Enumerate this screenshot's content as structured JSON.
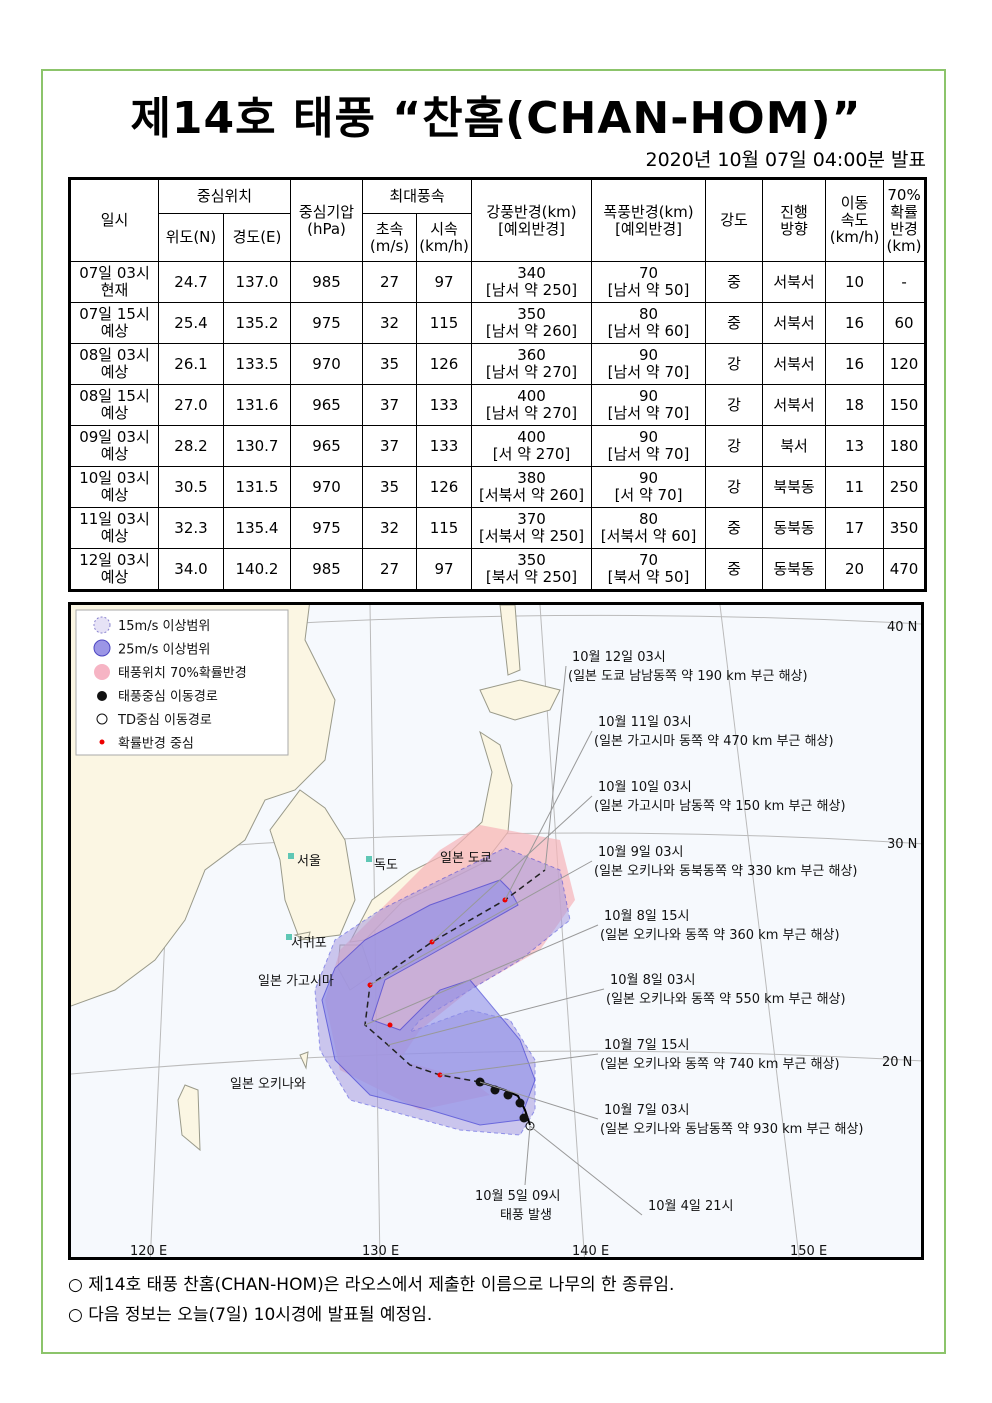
{
  "title": "제14호 태풍 “찬홈(CHAN-HOM)”",
  "issued": "2020년 10월 07일 04:00분 발표",
  "table": {
    "headers": {
      "time": "일시",
      "center": "중심위치",
      "lat": "위도(N)",
      "lon": "경도(E)",
      "pressure": "중심기압\n(hPa)",
      "max_wind": "최대풍속",
      "ms": "초속\n(m/s)",
      "kmh": "시속\n(km/h)",
      "gale": "강풍반경(km)\n[예외반경]",
      "storm": "폭풍반경(km)\n[예외반경]",
      "intensity": "강도",
      "direction": "진행\n방향",
      "speed": "이동\n속도\n(km/h)",
      "prob": "70%\n확률\n반경\n(km)"
    },
    "rows": [
      [
        "07일 03시\n현재",
        "24.7",
        "137.0",
        "985",
        "27",
        "97",
        "340\n[남서 약 250]",
        "70\n[남서 약 50]",
        "중",
        "서북서",
        "10",
        "-"
      ],
      [
        "07일 15시\n예상",
        "25.4",
        "135.2",
        "975",
        "32",
        "115",
        "350\n[남서 약 260]",
        "80\n[남서 약 60]",
        "중",
        "서북서",
        "16",
        "60"
      ],
      [
        "08일 03시\n예상",
        "26.1",
        "133.5",
        "970",
        "35",
        "126",
        "360\n[남서 약 270]",
        "90\n[남서 약 70]",
        "강",
        "서북서",
        "16",
        "120"
      ],
      [
        "08일 15시\n예상",
        "27.0",
        "131.6",
        "965",
        "37",
        "133",
        "400\n[남서 약 270]",
        "90\n[남서 약 70]",
        "강",
        "서북서",
        "18",
        "150"
      ],
      [
        "09일 03시\n예상",
        "28.2",
        "130.7",
        "965",
        "37",
        "133",
        "400\n[서 약 270]",
        "90\n[남서 약 70]",
        "강",
        "북서",
        "13",
        "180"
      ],
      [
        "10일 03시\n예상",
        "30.5",
        "131.5",
        "970",
        "35",
        "126",
        "380\n[서북서 약 260]",
        "90\n[서 약 70]",
        "강",
        "북북동",
        "11",
        "250"
      ],
      [
        "11일 03시\n예상",
        "32.3",
        "135.4",
        "975",
        "32",
        "115",
        "370\n[서북서 약 250]",
        "80\n[서북서 약 60]",
        "중",
        "동북동",
        "17",
        "350"
      ],
      [
        "12일 03시\n예상",
        "34.0",
        "140.2",
        "985",
        "27",
        "97",
        "350\n[북서 약 250]",
        "70\n[북서 약 50]",
        "중",
        "동북동",
        "20",
        "470"
      ]
    ]
  },
  "map": {
    "legend": [
      "15m/s 이상범위",
      "25m/s 이상범위",
      "태풍위치 70%확률반경",
      "태풍중심 이동경로",
      "TD중심 이동경로",
      "확률반경 중심"
    ],
    "lat_labels": [
      "40 N",
      "30 N",
      "20 N"
    ],
    "lon_labels": [
      "120 E",
      "130 E",
      "140 E",
      "150 E"
    ],
    "places": [
      "서울",
      "독도",
      "일본 도쿄",
      "서귀포",
      "일본 가고시마",
      "일본 오키나와"
    ],
    "annotations": [
      {
        "date": "10월 12일 03시",
        "desc": "(일본 도쿄 남남동쪽 약 190 km 부근 해상)"
      },
      {
        "date": "10월 11일 03시",
        "desc": "(일본 가고시마 동쪽 약 470 km 부근 해상)"
      },
      {
        "date": "10월 10일 03시",
        "desc": "(일본 가고시마 남동쪽 약 150 km 부근 해상)"
      },
      {
        "date": "10월 9일 03시",
        "desc": "(일본 오키나와 동북동쪽 약 330 km 부근 해상)"
      },
      {
        "date": "10월 8일 15시",
        "desc": "(일본 오키나와 동쪽 약 360 km 부근 해상)"
      },
      {
        "date": "10월 8일 03시",
        "desc": "(일본 오키나와 동쪽 약 550 km 부근 해상)"
      },
      {
        "date": "10월 7일 15시",
        "desc": "(일본 오키나와 동쪽 약 740 km 부근 해상)"
      },
      {
        "date": "10월 7일 03시",
        "desc": "(일본 오키나와 동남동쪽 약 930 km 부근 해상)"
      },
      {
        "date": "10월 5일 09시",
        "desc": "태풍 발생"
      },
      {
        "date": "10월 4일 21시"
      }
    ]
  },
  "notes": [
    "○ 제14호 태풍 찬홈(CHAN-HOM)은 라오스에서 제출한 이름으로 나무의 한 종류임.",
    "○ 다음 정보는 오늘(7일) 10시경에 발표될 예정임."
  ]
}
